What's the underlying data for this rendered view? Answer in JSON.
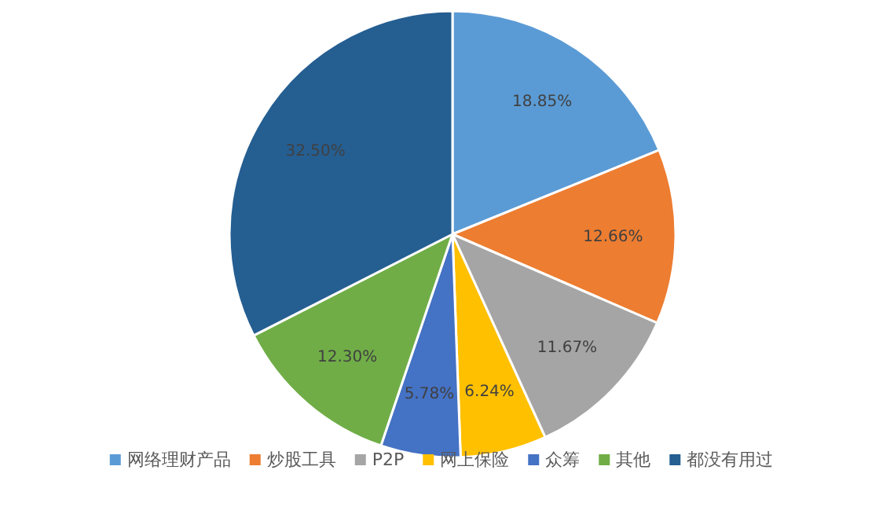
{
  "chart_data": {
    "type": "pie",
    "categories": [
      "网络理财产品",
      "炒股工具",
      "P2P",
      "网上保险",
      "众筹",
      "其他",
      "都没有用过"
    ],
    "values": [
      18.85,
      12.66,
      11.67,
      6.24,
      5.78,
      12.3,
      32.5
    ],
    "value_labels": [
      "18.85%",
      "12.66%",
      "11.67%",
      "6.24%",
      "5.78%",
      "12.30%",
      "32.50%"
    ],
    "colors": [
      "#5b9bd5",
      "#ed7d31",
      "#a5a5a5",
      "#ffc000",
      "#4472c4",
      "#70ad47",
      "#255e91"
    ],
    "legend": "bottom"
  }
}
